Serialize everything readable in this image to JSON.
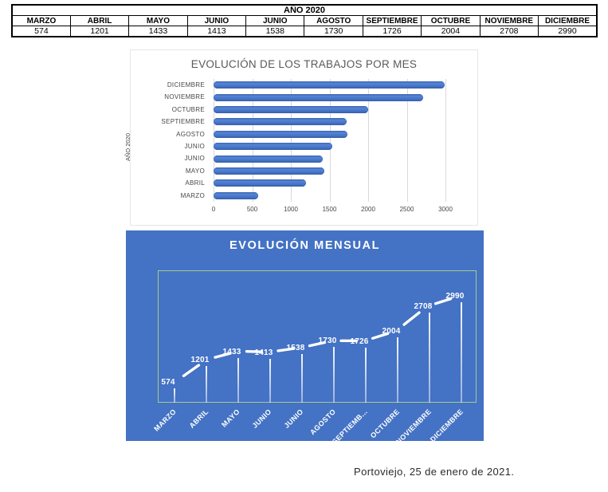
{
  "table": {
    "title": "AÑO 2020",
    "columns": [
      "MARZO",
      "ABRIL",
      "MAYO",
      "JUNIO",
      "JUNIO",
      "AGOSTO",
      "SEPTIEMBRE",
      "OCTUBRE",
      "NOVIEMBRE",
      "DICIEMBRE"
    ],
    "values": [
      "574",
      "1201",
      "1433",
      "1413",
      "1538",
      "1730",
      "1726",
      "2004",
      "2708",
      "2990"
    ]
  },
  "chart_data": [
    {
      "type": "bar",
      "orientation": "horizontal",
      "title": "EVOLUCIÓN DE LOS TRABAJOS POR MES",
      "ylabel": "AÑO 2020",
      "categories_top_to_bottom": [
        "DICIEMBRE",
        "NOVIEMBRE",
        "OCTUBRE",
        "SEPTIEMBRE",
        "AGOSTO",
        "JUNIO",
        "JUNIO",
        "MAYO",
        "ABRIL",
        "MARZO"
      ],
      "values_top_to_bottom": [
        2990,
        2708,
        2004,
        1726,
        1730,
        1538,
        1413,
        1433,
        1201,
        574
      ],
      "xlim": [
        0,
        3000
      ],
      "xticks": [
        0,
        500,
        1000,
        1500,
        2000,
        2500,
        3000
      ],
      "grid": "vertical",
      "legend": "none",
      "bar_color": "#4472c4",
      "gridline_color": "#d9d9d9",
      "title_color": "#595959"
    },
    {
      "type": "line",
      "title": "EVOLUCIÓN MENSUAL",
      "categories": [
        "MARZO",
        "ABRIL",
        "MAYO",
        "JUNIO",
        "JUNIO",
        "AGOSTO",
        "SEPTIEMB...",
        "OCTUBRE",
        "NOVIEMBRE",
        "DICIEMBRE"
      ],
      "values": [
        574,
        1201,
        1433,
        1413,
        1538,
        1730,
        1726,
        2004,
        2708,
        2990
      ],
      "data_labels": [
        "574",
        "1201",
        "1433",
        "1413",
        "1538",
        "1730",
        "1726",
        "2004",
        "2708",
        "2990"
      ],
      "ylim": [
        0,
        3700
      ],
      "legend": "none",
      "background_color": "#4472c4",
      "line_color": "#ffffff",
      "plot_border_color": "#a6ca8d",
      "drop_lines": true
    }
  ],
  "caption": "Portoviejo, 25 de enero de 2021."
}
